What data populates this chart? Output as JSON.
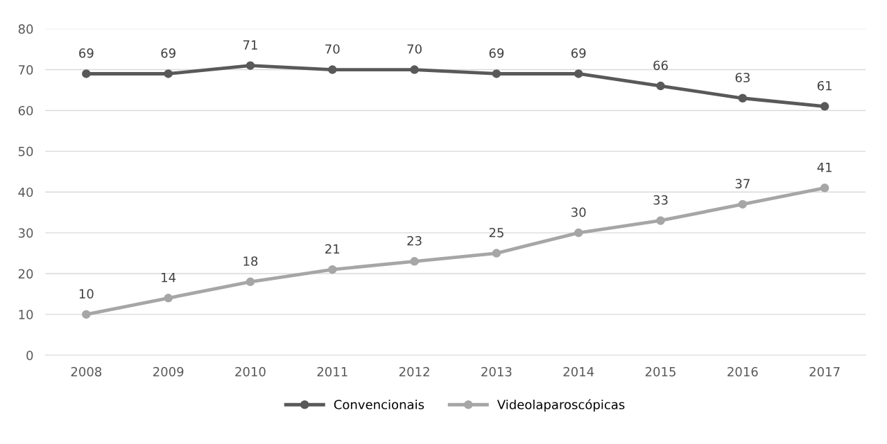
{
  "chart_data": {
    "type": "line",
    "categories": [
      "2008",
      "2009",
      "2010",
      "2011",
      "2012",
      "2013",
      "2014",
      "2015",
      "2016",
      "2017"
    ],
    "series": [
      {
        "name": "Convencionais",
        "color": "#595959",
        "values": [
          69,
          69,
          71,
          70,
          70,
          69,
          69,
          66,
          63,
          61
        ]
      },
      {
        "name": "Videolaparoscópicas",
        "color": "#a6a6a6",
        "values": [
          10,
          14,
          18,
          21,
          23,
          25,
          30,
          33,
          37,
          41
        ]
      }
    ],
    "ylim": [
      0,
      80
    ],
    "yticks": [
      0,
      10,
      20,
      30,
      40,
      50,
      60,
      70,
      80
    ],
    "grid": "y",
    "legend": "bottom",
    "marker": "circle",
    "line_style": "solid",
    "data_labels": true
  }
}
